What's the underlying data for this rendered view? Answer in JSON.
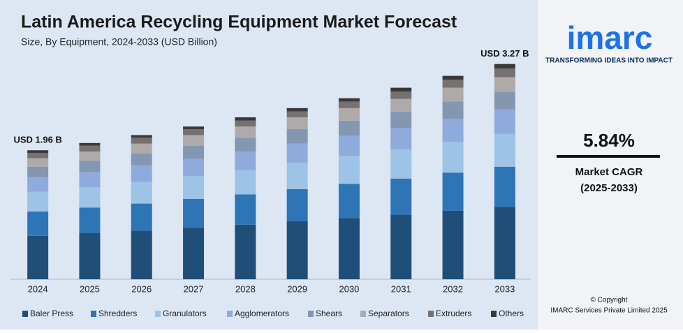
{
  "chart_data": {
    "type": "stacked_bar",
    "title": "Latin America Recycling Equipment Market Forecast",
    "subtitle": "Size, By Equipment, 2024-2033 (USD Billion)",
    "categories": [
      "2024",
      "2025",
      "2026",
      "2027",
      "2028",
      "2029",
      "2030",
      "2031",
      "2032",
      "2033"
    ],
    "series": [
      {
        "name": "Baler Press",
        "color": "#1f4e79",
        "values": [
          0.66,
          0.7,
          0.74,
          0.78,
          0.83,
          0.88,
          0.93,
          0.98,
          1.04,
          1.1
        ]
      },
      {
        "name": "Shredders",
        "color": "#2e75b6",
        "values": [
          0.37,
          0.39,
          0.41,
          0.44,
          0.46,
          0.49,
          0.52,
          0.55,
          0.58,
          0.61
        ]
      },
      {
        "name": "Granulators",
        "color": "#9dc3e6",
        "values": [
          0.3,
          0.31,
          0.33,
          0.35,
          0.37,
          0.4,
          0.42,
          0.44,
          0.47,
          0.5
        ]
      },
      {
        "name": "Agglomerators",
        "color": "#8faadc",
        "values": [
          0.22,
          0.23,
          0.25,
          0.26,
          0.28,
          0.29,
          0.31,
          0.33,
          0.35,
          0.37
        ]
      },
      {
        "name": "Shears",
        "color": "#8497b0",
        "values": [
          0.16,
          0.17,
          0.18,
          0.2,
          0.21,
          0.22,
          0.23,
          0.24,
          0.26,
          0.27
        ]
      },
      {
        "name": "Separators",
        "color": "#aeaaaa",
        "values": [
          0.13,
          0.14,
          0.15,
          0.16,
          0.17,
          0.18,
          0.19,
          0.2,
          0.21,
          0.22
        ]
      },
      {
        "name": "Extruders",
        "color": "#767171",
        "values": [
          0.08,
          0.09,
          0.09,
          0.09,
          0.09,
          0.09,
          0.1,
          0.11,
          0.12,
          0.13
        ]
      },
      {
        "name": "Others",
        "color": "#3a3838",
        "values": [
          0.04,
          0.04,
          0.04,
          0.04,
          0.05,
          0.05,
          0.05,
          0.06,
          0.06,
          0.07
        ]
      }
    ],
    "ylim": [
      0,
      3.5
    ],
    "annotations": [
      {
        "category": "2024",
        "label": "USD 1.96 B",
        "value": 1.96
      },
      {
        "category": "2033",
        "label": "USD 3.27 B",
        "value": 3.27
      }
    ]
  },
  "sidebar": {
    "logo": "imarc",
    "tagline": "TRANSFORMING IDEAS INTO IMPACT",
    "cagr": "5.84%",
    "cagr_label": "Market CAGR",
    "cagr_period": "(2025-2033)",
    "copyright": "© Copyright",
    "company": "IMARC Services Private Limited 2025"
  }
}
